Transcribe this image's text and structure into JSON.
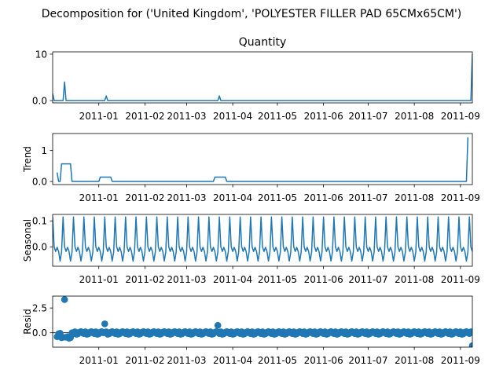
{
  "suptitle": "Decomposition for ('United Kingdom', 'POLYESTER FILLER PAD 65CMx65CM')",
  "x_ticks": [
    "2011-01",
    "2011-02",
    "2011-03",
    "2011-04",
    "2011-05",
    "2011-06",
    "2011-07",
    "2011-08",
    "2011-09"
  ],
  "colors": {
    "series": "#1f77b4",
    "axis": "#000000",
    "zero_line": "#000000"
  },
  "chart_data": [
    {
      "type": "line",
      "title": "Quantity",
      "ylabel": "",
      "ylim": [
        -0.5,
        10.5
      ],
      "yticks": [
        0,
        10
      ],
      "x_start": "2010-12-01",
      "x_end": "2011-09-09",
      "points": [
        [
          "2010-12-01",
          1.5
        ],
        [
          "2010-12-02",
          0
        ],
        [
          "2010-12-08",
          0
        ],
        [
          "2010-12-09",
          4
        ],
        [
          "2010-12-10",
          0
        ],
        [
          "2011-01-05",
          0
        ],
        [
          "2011-01-06",
          1
        ],
        [
          "2011-01-07",
          0
        ],
        [
          "2011-03-22",
          0
        ],
        [
          "2011-03-23",
          1
        ],
        [
          "2011-03-24",
          0
        ],
        [
          "2011-09-08",
          0
        ],
        [
          "2011-09-09",
          10
        ]
      ]
    },
    {
      "type": "line",
      "title": "",
      "ylabel": "Trend",
      "ylim": [
        -0.1,
        1.55
      ],
      "yticks": [
        0,
        1
      ],
      "x_start": "2010-12-01",
      "x_end": "2011-09-09",
      "points": [
        [
          "2010-12-04",
          0.29
        ],
        [
          "2010-12-05",
          0.0
        ],
        [
          "2010-12-06",
          0.0
        ],
        [
          "2010-12-07",
          0.57
        ],
        [
          "2010-12-13",
          0.57
        ],
        [
          "2010-12-14",
          0.0
        ],
        [
          "2011-01-01",
          0.0
        ],
        [
          "2011-01-02",
          0.14
        ],
        [
          "2011-01-09",
          0.14
        ],
        [
          "2011-01-10",
          0.0
        ],
        [
          "2011-03-19",
          0.0
        ],
        [
          "2011-03-20",
          0.14
        ],
        [
          "2011-03-27",
          0.14
        ],
        [
          "2011-03-28",
          0.0
        ],
        [
          "2011-09-05",
          0.0
        ],
        [
          "2011-09-06",
          1.43
        ]
      ]
    },
    {
      "type": "line",
      "title": "",
      "ylabel": "Seasonal",
      "ylim": [
        -0.075,
        0.125
      ],
      "yticks": [
        0.0,
        0.1
      ],
      "x_start": "2010-12-01",
      "x_end": "2011-09-09",
      "seasonal_pattern": [
        0.115,
        0.0,
        -0.018,
        -0.002,
        -0.018,
        -0.055,
        -0.02
      ]
    },
    {
      "type": "scatter",
      "title": "",
      "ylabel": "Resid",
      "ylim": [
        -1.45,
        3.7
      ],
      "yticks": [
        0.0,
        2.5
      ],
      "x_start": "2010-12-01",
      "x_end": "2011-09-09",
      "baseline": 0,
      "points": [
        [
          "2010-12-04",
          -0.4
        ],
        [
          "2010-12-05",
          -0.1
        ],
        [
          "2010-12-06",
          -0.05
        ],
        [
          "2010-12-07",
          -0.5
        ],
        [
          "2010-12-08",
          -0.45
        ],
        [
          "2010-12-09",
          3.35
        ],
        [
          "2010-12-10",
          -0.45
        ],
        [
          "2010-12-11",
          -0.4
        ],
        [
          "2010-12-12",
          -0.55
        ],
        [
          "2010-12-13",
          -0.5
        ],
        [
          "2011-01-05",
          0.9
        ],
        [
          "2011-03-22",
          0.75
        ],
        [
          "2011-09-09",
          -1.3
        ]
      ]
    }
  ]
}
